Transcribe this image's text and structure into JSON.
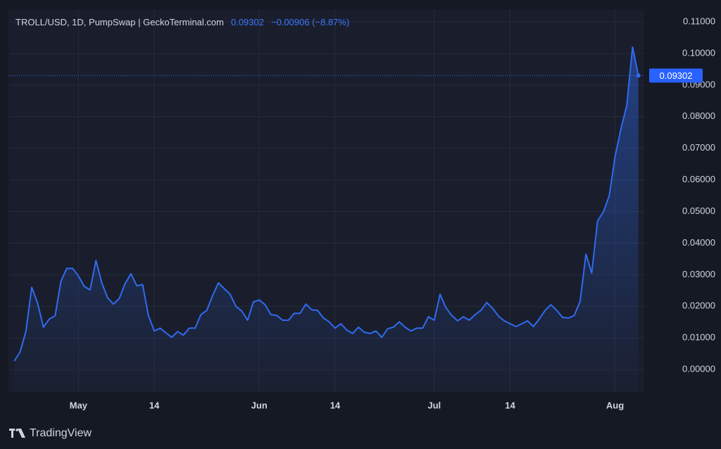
{
  "chart_data": {
    "type": "area",
    "title": "TROLL/USD, 1D, PumpSwap | GeckoTerminal.com",
    "price_label": "0.09302",
    "change_label": "−0.00906 (−8.87%)",
    "brand": "TradingView",
    "color": "#2f6bf0",
    "grid": true,
    "x": [
      "04-20",
      "04-21",
      "04-22",
      "04-23",
      "04-24",
      "04-25",
      "04-26",
      "04-27",
      "04-28",
      "04-29",
      "04-30",
      "05-01",
      "05-02",
      "05-03",
      "05-04",
      "05-05",
      "05-06",
      "05-07",
      "05-08",
      "05-09",
      "05-10",
      "05-11",
      "05-12",
      "05-13",
      "05-14",
      "05-15",
      "05-16",
      "05-17",
      "05-18",
      "05-19",
      "05-20",
      "05-21",
      "05-22",
      "05-23",
      "05-24",
      "05-25",
      "05-26",
      "05-27",
      "05-28",
      "05-29",
      "05-30",
      "05-31",
      "06-01",
      "06-02",
      "06-03",
      "06-04",
      "06-05",
      "06-06",
      "06-07",
      "06-08",
      "06-09",
      "06-10",
      "06-11",
      "06-12",
      "06-13",
      "06-14",
      "06-15",
      "06-16",
      "06-17",
      "06-18",
      "06-19",
      "06-20",
      "06-21",
      "06-22",
      "06-23",
      "06-24",
      "06-25",
      "06-26",
      "06-27",
      "06-28",
      "06-29",
      "06-30",
      "07-01",
      "07-02",
      "07-03",
      "07-04",
      "07-05",
      "07-06",
      "07-07",
      "07-08",
      "07-09",
      "07-10",
      "07-11",
      "07-12",
      "07-13",
      "07-14",
      "07-15",
      "07-16",
      "07-17",
      "07-18",
      "07-19",
      "07-20",
      "07-21",
      "07-22",
      "07-23",
      "07-24",
      "07-25",
      "07-26",
      "07-27",
      "07-28",
      "07-29",
      "07-30",
      "07-31",
      "08-01",
      "08-02",
      "08-03",
      "08-04",
      "08-05"
    ],
    "values": [
      0.0027,
      0.0056,
      0.0122,
      0.026,
      0.021,
      0.0134,
      0.016,
      0.017,
      0.028,
      0.032,
      0.032,
      0.0296,
      0.0263,
      0.0252,
      0.0345,
      0.0274,
      0.0227,
      0.0207,
      0.0225,
      0.0272,
      0.0303,
      0.0265,
      0.0269,
      0.0171,
      0.0122,
      0.0131,
      0.0116,
      0.0102,
      0.012,
      0.0109,
      0.0131,
      0.0131,
      0.0174,
      0.0187,
      0.0234,
      0.0274,
      0.0256,
      0.0238,
      0.02,
      0.0185,
      0.0156,
      0.0214,
      0.022,
      0.0205,
      0.0174,
      0.0171,
      0.0156,
      0.0156,
      0.0178,
      0.0178,
      0.0207,
      0.0189,
      0.0187,
      0.0163,
      0.0151,
      0.0131,
      0.0145,
      0.0125,
      0.0114,
      0.0134,
      0.0118,
      0.0114,
      0.0122,
      0.0102,
      0.0129,
      0.0134,
      0.0151,
      0.0134,
      0.0122,
      0.0131,
      0.0131,
      0.0167,
      0.0156,
      0.0238,
      0.0196,
      0.0171,
      0.0154,
      0.0167,
      0.0156,
      0.0174,
      0.0187,
      0.0212,
      0.0194,
      0.0169,
      0.0154,
      0.0145,
      0.0136,
      0.0145,
      0.0154,
      0.0136,
      0.016,
      0.0187,
      0.0205,
      0.0187,
      0.0165,
      0.0163,
      0.0171,
      0.0216,
      0.0365,
      0.0305,
      0.047,
      0.0499,
      0.055,
      0.0675,
      0.0762,
      0.0835,
      0.102,
      0.09302
    ],
    "xlim": [
      "04-19",
      "08-06"
    ],
    "xticks": [
      {
        "value": "05-01",
        "label": "May"
      },
      {
        "value": "05-14",
        "label": "14"
      },
      {
        "value": "06-01",
        "label": "Jun"
      },
      {
        "value": "06-14",
        "label": "14"
      },
      {
        "value": "07-01",
        "label": "Jul"
      },
      {
        "value": "07-14",
        "label": "14"
      },
      {
        "value": "08-01",
        "label": "Aug"
      }
    ],
    "ylim": [
      -0.0071,
      0.1138
    ],
    "yticks": [
      {
        "value": 0,
        "label": "0.00000"
      },
      {
        "value": 0.01,
        "label": "0.01000"
      },
      {
        "value": 0.02,
        "label": "0.02000"
      },
      {
        "value": 0.03,
        "label": "0.03000"
      },
      {
        "value": 0.04,
        "label": "0.04000"
      },
      {
        "value": 0.05,
        "label": "0.05000"
      },
      {
        "value": 0.06,
        "label": "0.06000"
      },
      {
        "value": 0.07,
        "label": "0.07000"
      },
      {
        "value": 0.08,
        "label": "0.08000"
      },
      {
        "value": 0.09,
        "label": "0.09000"
      },
      {
        "value": 0.1,
        "label": "0.10000"
      },
      {
        "value": 0.11,
        "label": "0.11000"
      }
    ]
  }
}
